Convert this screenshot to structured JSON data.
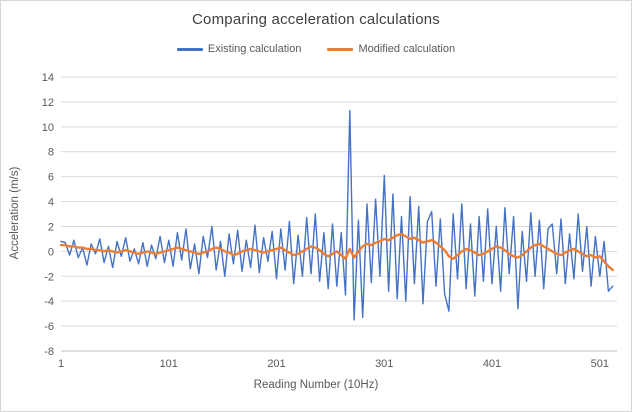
{
  "window": {
    "background": "#ffffff",
    "border_color": "#d7d7d7",
    "grid_color": "#d9d9d9",
    "axis_color": "#bfbfbf",
    "text_color": "#595959",
    "title_color": "#404040"
  },
  "chart_data": {
    "type": "line",
    "title": "Comparing acceleration calculations",
    "xlabel": "Reading Number (10Hz)",
    "ylabel": "Acceleration (m/s)",
    "xlim": [
      1,
      517
    ],
    "ylim": [
      -8,
      14
    ],
    "xticks": [
      1,
      101,
      201,
      301,
      401,
      501
    ],
    "yticks": [
      14,
      12,
      10,
      8,
      6,
      4,
      2,
      0,
      -2,
      -4,
      -6,
      -8
    ],
    "grid": "horizontal",
    "legend_position": "top",
    "x_start": 1,
    "x_step": 4,
    "series": [
      {
        "name": "Existing calculation",
        "color": "#4472C4",
        "width": 1.4,
        "values": [
          0.8,
          0.7,
          -0.3,
          0.9,
          -0.5,
          0.3,
          -1.1,
          0.6,
          -0.2,
          1.0,
          -0.9,
          0.4,
          -1.3,
          0.8,
          -0.4,
          1.1,
          -0.8,
          0.2,
          -1.0,
          0.7,
          -1.2,
          0.5,
          -0.6,
          1.2,
          -0.9,
          0.9,
          -1.2,
          1.5,
          -0.7,
          1.8,
          -1.4,
          0.6,
          -1.8,
          1.2,
          -0.5,
          2.0,
          -1.5,
          0.8,
          -2.0,
          1.4,
          -1.0,
          1.7,
          -1.6,
          0.9,
          -1.3,
          2.1,
          -1.7,
          1.1,
          -0.8,
          1.6,
          -2.2,
          1.8,
          -1.5,
          2.4,
          -2.6,
          1.3,
          -2.0,
          2.7,
          -1.8,
          3.0,
          -2.4,
          1.5,
          -3.0,
          2.2,
          -2.8,
          1.5,
          -3.5,
          11.3,
          -5.5,
          2.5,
          -5.3,
          3.8,
          -2.5,
          4.2,
          -2.0,
          6.1,
          -3.2,
          4.6,
          -3.8,
          2.8,
          -4.0,
          4.4,
          -2.6,
          3.6,
          -4.2,
          2.4,
          3.2,
          -2.8,
          2.6,
          -3.4,
          -4.8,
          3.0,
          -2.2,
          3.8,
          -3.0,
          2.2,
          -3.6,
          2.8,
          -2.4,
          3.4,
          -2.6,
          2.0,
          -3.2,
          3.5,
          -1.8,
          2.8,
          -4.6,
          1.6,
          -2.4,
          3.1,
          -2.0,
          2.5,
          -3.0,
          1.8,
          2.2,
          -1.8,
          2.6,
          -2.6,
          1.4,
          -2.2,
          3.0,
          -1.6,
          2.0,
          -2.8,
          1.2,
          -2.0,
          0.8,
          -3.2,
          -2.8
        ]
      },
      {
        "name": "Modified calculation",
        "color": "#ED7D31",
        "width": 2.4,
        "values": [
          0.5,
          0.5,
          0.4,
          0.4,
          0.3,
          0.3,
          0.2,
          0.2,
          0.1,
          0.1,
          0.0,
          0.1,
          0.0,
          -0.1,
          0.0,
          0.1,
          0.0,
          -0.1,
          -0.2,
          -0.1,
          0.0,
          -0.1,
          -0.2,
          -0.1,
          0.0,
          0.1,
          0.2,
          0.3,
          0.2,
          0.1,
          0.0,
          -0.1,
          -0.2,
          -0.1,
          0.0,
          0.2,
          0.3,
          0.2,
          0.0,
          -0.1,
          -0.3,
          -0.2,
          0.0,
          0.1,
          0.2,
          0.1,
          0.0,
          -0.1,
          0.0,
          0.1,
          0.2,
          0.3,
          0.1,
          -0.1,
          -0.3,
          -0.2,
          0.0,
          0.2,
          0.4,
          0.3,
          0.1,
          -0.2,
          -0.4,
          -0.2,
          0.0,
          -0.3,
          -0.6,
          0.2,
          -0.5,
          0.0,
          0.4,
          0.6,
          0.5,
          0.7,
          0.8,
          1.0,
          0.9,
          1.1,
          1.3,
          1.4,
          1.2,
          1.0,
          1.1,
          0.9,
          0.7,
          0.8,
          0.9,
          0.7,
          0.4,
          0.1,
          -0.4,
          -0.6,
          -0.3,
          0.0,
          0.2,
          0.1,
          -0.1,
          -0.3,
          -0.2,
          0.0,
          0.2,
          0.4,
          0.3,
          0.1,
          -0.2,
          -0.4,
          -0.5,
          -0.3,
          0.0,
          0.3,
          0.5,
          0.6,
          0.4,
          0.2,
          0.0,
          -0.2,
          -0.3,
          -0.1,
          0.1,
          0.2,
          0.0,
          -0.2,
          -0.4,
          -0.3,
          -0.5,
          -0.4,
          -0.8,
          -1.2,
          -1.5
        ]
      }
    ]
  }
}
